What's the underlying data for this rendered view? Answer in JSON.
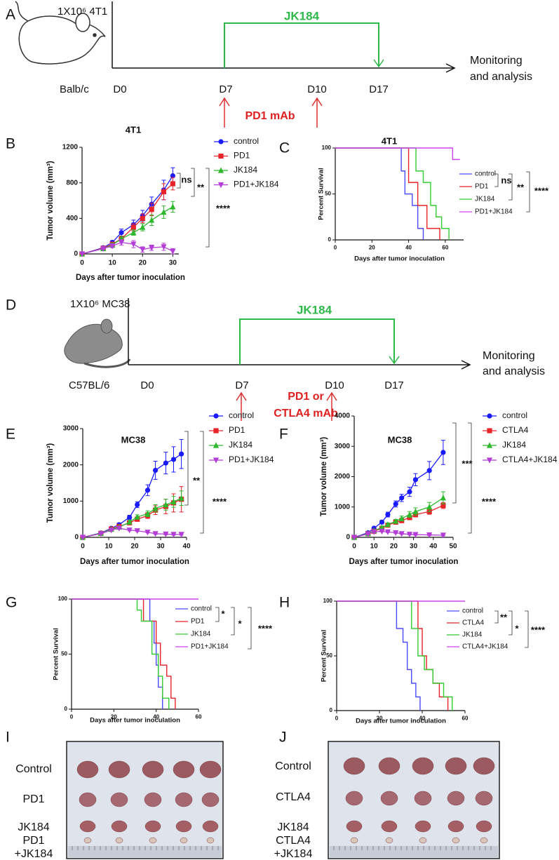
{
  "panel_labels": [
    "A",
    "B",
    "C",
    "D",
    "E",
    "F",
    "G",
    "H",
    "I",
    "J"
  ],
  "schematics": [
    {
      "inoculum": "1X10⁶ 4T1",
      "strain": "Balb/c",
      "days": [
        "D0",
        "D7",
        "D10",
        "D17"
      ],
      "drug": "JK184",
      "antibody": [
        "PD1 mAb"
      ],
      "readout": [
        "Monitoring",
        "and analysis"
      ]
    },
    {
      "inoculum": "1X10⁶ MC38",
      "strain": "C57BL/6",
      "days": [
        "D0",
        "D7",
        "D10",
        "D17"
      ],
      "drug": "JK184",
      "antibody": [
        "PD1 or",
        "CTLA4 mAb"
      ],
      "readout": [
        "Monitoring",
        "and analysis"
      ]
    }
  ],
  "chart_data": [
    {
      "type": "line",
      "title": "4T1",
      "x_label": "Days after tumor inoculation",
      "y_label": "Tumor volume (mm³)",
      "x": [
        0,
        7,
        10,
        13,
        17,
        20,
        23,
        27,
        30
      ],
      "xlim": [
        0,
        32
      ],
      "xticks": [
        0,
        10,
        20,
        30
      ],
      "ylim": [
        0,
        1200
      ],
      "yticks": [
        0,
        400,
        800,
        1200
      ],
      "series": [
        {
          "name": "control",
          "color": "#1a1aff",
          "marker": "circle",
          "values": [
            0,
            70,
            130,
            240,
            330,
            430,
            560,
            720,
            880
          ],
          "errors": [
            0,
            15,
            20,
            40,
            50,
            60,
            80,
            110,
            90
          ]
        },
        {
          "name": "PD1",
          "color": "#e8232a",
          "marker": "square",
          "values": [
            0,
            65,
            110,
            170,
            300,
            400,
            500,
            700,
            790
          ],
          "errors": [
            0,
            10,
            20,
            30,
            40,
            50,
            70,
            90,
            70
          ]
        },
        {
          "name": "JK184",
          "color": "#2db82d",
          "marker": "triangle-up",
          "values": [
            0,
            60,
            100,
            170,
            240,
            300,
            380,
            470,
            530
          ],
          "errors": [
            0,
            10,
            20,
            25,
            30,
            40,
            60,
            70,
            60
          ]
        },
        {
          "name": "PD1+JK184",
          "color": "#b33dd6",
          "marker": "triangle-down",
          "values": [
            0,
            60,
            90,
            130,
            110,
            50,
            70,
            80,
            30
          ],
          "errors": [
            0,
            10,
            20,
            30,
            40,
            30,
            30,
            40,
            30
          ]
        }
      ],
      "annotations": [
        "ns",
        "**",
        "****"
      ]
    },
    {
      "type": "step",
      "title": "4T1",
      "x_label": "Days after tumor inoculation",
      "y_label": "Percent Survival",
      "xlim": [
        0,
        70
      ],
      "xticks": [
        0,
        20,
        40,
        60
      ],
      "ylim": [
        0,
        100
      ],
      "yticks": [
        0,
        50,
        100
      ],
      "series": [
        {
          "name": "control",
          "color": "#4a4aff",
          "x": [
            0,
            36,
            38,
            42,
            45,
            48
          ],
          "values": [
            100,
            75,
            50,
            37.5,
            12.5,
            0
          ]
        },
        {
          "name": "PD1",
          "color": "#e8232a",
          "x": [
            0,
            40,
            45,
            50,
            57
          ],
          "values": [
            100,
            62.5,
            37.5,
            12.5,
            0
          ]
        },
        {
          "name": "JK184",
          "color": "#33cc33",
          "x": [
            0,
            44,
            48,
            52,
            55,
            58,
            62
          ],
          "values": [
            100,
            75,
            62.5,
            37.5,
            25,
            12.5,
            0
          ]
        },
        {
          "name": "PD1+JK184",
          "color": "#cc44ee",
          "x": [
            0,
            64,
            68
          ],
          "values": [
            100,
            87.5,
            87.5
          ]
        }
      ],
      "annotations": [
        "ns",
        "**",
        "****"
      ]
    },
    {
      "type": "line",
      "title": "MC38",
      "x_label": "Days after tumor inoculation",
      "y_label": "Tumor volume (mm³)",
      "x": [
        0,
        7,
        11,
        14,
        18,
        21,
        25,
        28,
        32,
        35,
        38
      ],
      "xlim": [
        0,
        40
      ],
      "xticks": [
        0,
        10,
        20,
        30,
        40
      ],
      "ylim": [
        0,
        3000
      ],
      "yticks": [
        0,
        1000,
        2000,
        3000
      ],
      "series": [
        {
          "name": "control",
          "color": "#1a1aff",
          "marker": "circle",
          "values": [
            0,
            120,
            250,
            350,
            550,
            900,
            1300,
            1850,
            2050,
            2150,
            2300
          ],
          "errors": [
            0,
            20,
            30,
            40,
            60,
            80,
            150,
            250,
            300,
            350,
            400
          ]
        },
        {
          "name": "PD1",
          "color": "#e8232a",
          "marker": "square",
          "values": [
            0,
            110,
            230,
            300,
            400,
            500,
            600,
            750,
            850,
            950,
            1050
          ],
          "errors": [
            0,
            20,
            30,
            30,
            40,
            60,
            80,
            120,
            200,
            250,
            350
          ]
        },
        {
          "name": "JK184",
          "color": "#2db82d",
          "marker": "triangle-up",
          "values": [
            0,
            110,
            220,
            280,
            420,
            560,
            650,
            800,
            900,
            980,
            1080
          ],
          "errors": [
            0,
            20,
            30,
            30,
            50,
            60,
            80,
            100,
            150,
            150,
            200
          ]
        },
        {
          "name": "PD1+JK184",
          "color": "#b33dd6",
          "marker": "triangle-down",
          "values": [
            0,
            100,
            200,
            250,
            200,
            180,
            140,
            100,
            90,
            80,
            80
          ],
          "errors": [
            0,
            10,
            20,
            20,
            20,
            20,
            20,
            20,
            20,
            20,
            20
          ]
        }
      ],
      "annotations": [
        "**",
        "****"
      ]
    },
    {
      "type": "line",
      "title": "MC38",
      "x_label": "Days after tumor inoculation",
      "y_label": "Tumor volume (mm³)",
      "x": [
        0,
        7,
        10,
        14,
        17,
        21,
        24,
        28,
        31,
        38,
        45
      ],
      "xlim": [
        0,
        50
      ],
      "xticks": [
        0,
        10,
        20,
        30,
        40,
        50
      ],
      "ylim": [
        0,
        4000
      ],
      "yticks": [
        0,
        1000,
        2000,
        3000,
        4000
      ],
      "series": [
        {
          "name": "control",
          "color": "#1a1aff",
          "marker": "circle",
          "values": [
            0,
            150,
            300,
            500,
            750,
            1100,
            1300,
            1500,
            1900,
            2200,
            2800
          ],
          "errors": [
            0,
            20,
            40,
            60,
            80,
            100,
            120,
            150,
            200,
            300,
            400
          ]
        },
        {
          "name": "CTLA4",
          "color": "#e8232a",
          "marker": "square",
          "values": [
            0,
            120,
            200,
            300,
            400,
            500,
            550,
            650,
            750,
            850,
            1050
          ],
          "errors": [
            0,
            20,
            30,
            30,
            40,
            50,
            60,
            70,
            80,
            90,
            100
          ]
        },
        {
          "name": "JK184",
          "color": "#2db82d",
          "marker": "triangle-up",
          "values": [
            0,
            120,
            220,
            320,
            420,
            530,
            620,
            750,
            850,
            1000,
            1300
          ],
          "errors": [
            0,
            20,
            30,
            40,
            50,
            60,
            80,
            100,
            120,
            150,
            200
          ]
        },
        {
          "name": "CTLA4+JK184",
          "color": "#b33dd6",
          "marker": "triangle-down",
          "values": [
            0,
            110,
            180,
            200,
            180,
            150,
            120,
            100,
            90,
            80,
            70
          ],
          "errors": [
            0,
            10,
            20,
            20,
            20,
            20,
            20,
            20,
            20,
            20,
            20
          ]
        }
      ],
      "annotations": [
        "***",
        "****"
      ]
    },
    {
      "type": "step",
      "x_label": "Days after tumor inoculation",
      "y_label": "Percent Survival",
      "xlim": [
        0,
        60
      ],
      "xticks": [
        0,
        20,
        40,
        60
      ],
      "ylim": [
        0,
        100
      ],
      "yticks": [
        0,
        50,
        100
      ],
      "series": [
        {
          "name": "control",
          "color": "#4a4aff",
          "x": [
            0,
            37,
            39,
            40,
            41,
            43
          ],
          "values": [
            100,
            80,
            60,
            40,
            20,
            0
          ]
        },
        {
          "name": "PD1",
          "color": "#e8232a",
          "x": [
            0,
            34,
            40,
            42,
            45,
            47,
            49
          ],
          "values": [
            100,
            80,
            60,
            40,
            30,
            10,
            0
          ]
        },
        {
          "name": "JK184",
          "color": "#33cc33",
          "x": [
            0,
            31,
            33,
            38,
            41,
            43,
            46
          ],
          "values": [
            100,
            90,
            80,
            50,
            30,
            10,
            0
          ]
        },
        {
          "name": "PD1+JK184",
          "color": "#cc44ee",
          "x": [
            0,
            60
          ],
          "values": [
            100,
            100
          ]
        }
      ],
      "annotations": [
        "*",
        "*",
        "****"
      ]
    },
    {
      "type": "step",
      "x_label": "Days after tumor inoculation",
      "y_label": "Percent Survival",
      "xlim": [
        0,
        60
      ],
      "xticks": [
        0,
        20,
        40,
        60
      ],
      "ylim": [
        0,
        100
      ],
      "yticks": [
        0,
        50,
        100
      ],
      "series": [
        {
          "name": "control",
          "color": "#4a4aff",
          "x": [
            0,
            28,
            31,
            33,
            35,
            37,
            39
          ],
          "values": [
            100,
            75,
            62.5,
            37.5,
            25,
            12.5,
            0
          ]
        },
        {
          "name": "CTLA4",
          "color": "#e8232a",
          "x": [
            0,
            38,
            40,
            42,
            45,
            48,
            52
          ],
          "values": [
            100,
            75,
            50,
            37.5,
            25,
            12.5,
            0
          ]
        },
        {
          "name": "JK184",
          "color": "#33cc33",
          "x": [
            0,
            35,
            38,
            41,
            45,
            50,
            54
          ],
          "values": [
            100,
            75,
            50,
            37.5,
            25,
            12.5,
            0
          ]
        },
        {
          "name": "CTLA4+JK184",
          "color": "#cc44ee",
          "x": [
            0,
            60
          ],
          "values": [
            100,
            100
          ]
        }
      ],
      "annotations": [
        "**",
        "*",
        "****"
      ]
    }
  ],
  "photos": [
    {
      "row_labels": [
        [
          "Control"
        ],
        [
          "PD1"
        ],
        [
          "JK184"
        ],
        [
          "PD1",
          "+JK184"
        ]
      ]
    },
    {
      "row_labels": [
        [
          "Control"
        ],
        [
          "CTLA4"
        ],
        [
          "JK184"
        ],
        [
          "CTLA4",
          "+JK184"
        ]
      ]
    }
  ]
}
